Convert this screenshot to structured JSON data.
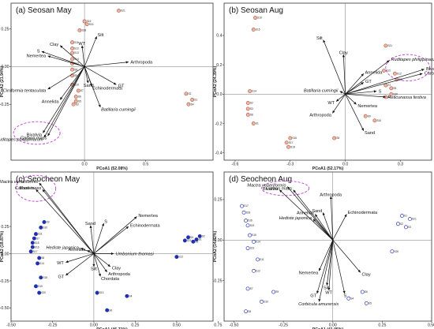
{
  "chart_data": [
    {
      "type": "scatter",
      "panel": "(a) Seosan May",
      "xlabel": "PCoA1 (52.08%)",
      "ylabel": "PCoA2 (21.94%)",
      "xlim": [
        -0.6,
        1.05
      ],
      "ylim": [
        -0.62,
        0.42
      ],
      "xticks": [
        0.0,
        0.5
      ],
      "xtick_labels": [
        "0.0",
        "0.5"
      ],
      "yticks": [
        0.25,
        0.0,
        -0.25
      ],
      "ytick_labels": [
        "0.25",
        "0.00",
        "-0.25"
      ],
      "point_color": "#b5604a",
      "points": [
        {
          "x": 0.28,
          "y": 0.37,
          "label": "S21"
        },
        {
          "x": 0.0,
          "y": 0.3,
          "label": "S16"
        },
        {
          "x": 0.02,
          "y": 0.28,
          "label": "S15"
        },
        {
          "x": -0.04,
          "y": 0.24,
          "label": "S18"
        },
        {
          "x": -0.1,
          "y": 0.16,
          "label": "S11"
        },
        {
          "x": -0.1,
          "y": 0.12,
          "label": "S12"
        },
        {
          "x": -0.1,
          "y": 0.09,
          "label": "S13"
        },
        {
          "x": -0.1,
          "y": 0.05,
          "label": "S14"
        },
        {
          "x": -0.1,
          "y": 0.02,
          "label": "S17"
        },
        {
          "x": -0.1,
          "y": -0.02,
          "label": "S8"
        },
        {
          "x": -0.1,
          "y": -0.06,
          "label": "S9"
        },
        {
          "x": -0.1,
          "y": -0.12,
          "label": "S10"
        },
        {
          "x": -0.05,
          "y": -0.16,
          "label": "S7"
        },
        {
          "x": -0.07,
          "y": -0.2,
          "label": "S6"
        },
        {
          "x": -0.07,
          "y": -0.23,
          "label": "S5"
        },
        {
          "x": -0.09,
          "y": -0.25,
          "label": "S3"
        },
        {
          "x": 0.83,
          "y": -0.18,
          "label": "S2"
        },
        {
          "x": 0.88,
          "y": -0.22,
          "label": "S1"
        },
        {
          "x": 0.85,
          "y": -0.25,
          "label": "S4"
        }
      ],
      "vectors": [
        {
          "label": "Silt",
          "x": 0.1,
          "y": 0.2,
          "italic": false
        },
        {
          "label": "WT",
          "x": -0.02,
          "y": 0.14,
          "italic": false
        },
        {
          "label": "Clay",
          "x": -0.2,
          "y": 0.14,
          "italic": false
        },
        {
          "label": "S",
          "x": -0.35,
          "y": 0.1,
          "italic": false
        },
        {
          "label": "Nemertea",
          "x": -0.3,
          "y": 0.07,
          "italic": false
        },
        {
          "label": "Arthropoda",
          "x": 0.36,
          "y": 0.03,
          "italic": false
        },
        {
          "label": "GT",
          "x": 0.26,
          "y": -0.12,
          "italic": false
        },
        {
          "label": "Sand",
          "x": 0.03,
          "y": -0.11,
          "italic": false
        },
        {
          "label": "Echinodermata",
          "x": 0.06,
          "y": -0.13,
          "italic": false
        },
        {
          "label": "Cirriformia tentaculata",
          "x": -0.3,
          "y": -0.15,
          "italic": true
        },
        {
          "label": "Annelida",
          "x": -0.2,
          "y": -0.22,
          "italic": false
        },
        {
          "label": "Batillaria cumingii",
          "x": 0.13,
          "y": -0.27,
          "italic": true
        },
        {
          "label": "Bivalvia",
          "x": -0.34,
          "y": -0.44,
          "italic": false
        },
        {
          "label": "Carbon mass",
          "x": -0.3,
          "y": -0.46,
          "italic": false
        },
        {
          "label": "Ruditapes philippinarum",
          "x": -0.33,
          "y": -0.47,
          "italic": true
        }
      ]
    },
    {
      "type": "scatter",
      "panel": "(b) Seosan Aug",
      "xlabel": "PCoA1 (52.17%)",
      "ylabel": "PCoA2 (24.39%)",
      "xlim": [
        -0.66,
        0.47
      ],
      "ylim": [
        -0.45,
        0.62
      ],
      "xticks": [
        -0.6,
        -0.3,
        0.0,
        0.3
      ],
      "xtick_labels": [
        "-0.6",
        "-0.3",
        "0.0",
        "0.3"
      ],
      "yticks": [
        0.4,
        0.2,
        0.0,
        -0.2,
        -0.4
      ],
      "ytick_labels": [
        "0.4",
        "0.2",
        "0.0",
        "-0.2",
        "-0.4"
      ],
      "point_color": "#c0664f",
      "points": [
        {
          "x": -0.49,
          "y": 0.52,
          "label": "S19"
        },
        {
          "x": -0.5,
          "y": 0.44,
          "label": "S15"
        },
        {
          "x": -0.52,
          "y": 0.02,
          "label": "S14"
        },
        {
          "x": -0.53,
          "y": -0.06,
          "label": "S2"
        },
        {
          "x": -0.53,
          "y": -0.1,
          "label": "S3"
        },
        {
          "x": -0.53,
          "y": -0.14,
          "label": "S6"
        },
        {
          "x": -0.5,
          "y": -0.2,
          "label": "S1"
        },
        {
          "x": -0.3,
          "y": -0.3,
          "label": "S16"
        },
        {
          "x": -0.32,
          "y": -0.33,
          "label": "S17"
        },
        {
          "x": -0.31,
          "y": -0.36,
          "label": "S18"
        },
        {
          "x": -0.06,
          "y": -0.3,
          "label": "S8"
        },
        {
          "x": 0.11,
          "y": -0.15,
          "label": "S9"
        },
        {
          "x": 0.16,
          "y": -0.18,
          "label": "S10"
        },
        {
          "x": 0.21,
          "y": 0.16,
          "label": "S13"
        },
        {
          "x": 0.27,
          "y": 0.14,
          "label": "S12"
        },
        {
          "x": 0.28,
          "y": 0.1,
          "label": "S11"
        },
        {
          "x": 0.22,
          "y": 0.06,
          "label": "S7"
        },
        {
          "x": 0.25,
          "y": 0.04,
          "label": "S5"
        },
        {
          "x": 0.25,
          "y": 0.0,
          "label": "S20"
        },
        {
          "x": 0.22,
          "y": -0.02,
          "label": "S4"
        },
        {
          "x": 0.22,
          "y": 0.33,
          "label": "S21"
        }
      ],
      "vectors": [
        {
          "label": "Silt",
          "x": -0.12,
          "y": 0.37,
          "italic": false
        },
        {
          "label": "Clay",
          "x": -0.01,
          "y": 0.27,
          "italic": false
        },
        {
          "label": "Ruditapes philippinarum",
          "x": 0.24,
          "y": 0.23,
          "italic": true
        },
        {
          "label": "Bivalvia",
          "x": 0.43,
          "y": 0.17,
          "italic": false
        },
        {
          "label": "Carbon mass",
          "x": 0.42,
          "y": 0.14,
          "italic": false
        },
        {
          "label": "Annelida",
          "x": 0.1,
          "y": 0.14,
          "italic": false
        },
        {
          "label": "GT",
          "x": 0.1,
          "y": 0.08,
          "italic": false
        },
        {
          "label": "S",
          "x": 0.17,
          "y": 0.02,
          "italic": false
        },
        {
          "label": "Batillaria cumingii",
          "x": -0.03,
          "y": 0.02,
          "italic": true
        },
        {
          "label": "Reticunassa festiva",
          "x": 0.22,
          "y": -0.02,
          "italic": true
        },
        {
          "label": "WT",
          "x": -0.05,
          "y": -0.05,
          "italic": false
        },
        {
          "label": "Nemertea",
          "x": 0.06,
          "y": -0.07,
          "italic": false
        },
        {
          "label": "Arthropoda",
          "x": -0.07,
          "y": -0.13,
          "italic": false
        },
        {
          "label": "Sand",
          "x": 0.1,
          "y": -0.25,
          "italic": false
        }
      ]
    },
    {
      "type": "scatter",
      "panel": "(c) Seocheon May",
      "xlabel": "PCoA1 (46.71%)",
      "ylabel": "PCoA2 (18.87%)",
      "xlim": [
        -0.5,
        0.72
      ],
      "ylim": [
        -0.62,
        0.75
      ],
      "xticks": [
        -0.5,
        -0.25,
        0.0,
        0.25,
        0.5,
        0.75
      ],
      "xtick_labels": [
        "-0.50",
        "-0.25",
        "0.00",
        "0.25",
        "0.50",
        "0.75"
      ],
      "yticks": [
        0.25,
        0.0,
        -0.25,
        -0.5
      ],
      "ytick_labels": [
        "0.25",
        "0.00",
        "-0.25",
        "-0.50"
      ],
      "point_color": "#1f2fb0",
      "points": [
        {
          "x": -0.3,
          "y": 0.29,
          "label": "S9"
        },
        {
          "x": -0.32,
          "y": 0.24,
          "label": "S10"
        },
        {
          "x": -0.35,
          "y": 0.18,
          "label": "S11"
        },
        {
          "x": -0.36,
          "y": 0.14,
          "label": "S7"
        },
        {
          "x": -0.37,
          "y": 0.1,
          "label": "S15"
        },
        {
          "x": -0.37,
          "y": 0.06,
          "label": "S16"
        },
        {
          "x": -0.38,
          "y": 0.02,
          "label": "S17"
        },
        {
          "x": -0.33,
          "y": -0.04,
          "label": "S8"
        },
        {
          "x": -0.34,
          "y": -0.09,
          "label": "S14"
        },
        {
          "x": -0.32,
          "y": -0.22,
          "label": "S18"
        },
        {
          "x": -0.35,
          "y": -0.3,
          "label": "S19"
        },
        {
          "x": -0.33,
          "y": -0.36,
          "label": "S20"
        },
        {
          "x": 0.02,
          "y": -0.36,
          "label": "S13"
        },
        {
          "x": 0.2,
          "y": -0.39,
          "label": "S4"
        },
        {
          "x": 0.08,
          "y": -0.52,
          "label": "S6"
        },
        {
          "x": 0.5,
          "y": -0.03,
          "label": "S12"
        },
        {
          "x": 0.64,
          "y": 0.16,
          "label": "S2"
        },
        {
          "x": 0.62,
          "y": 0.13,
          "label": "S1"
        },
        {
          "x": 0.6,
          "y": 0.11,
          "label": "S3"
        },
        {
          "x": 0.57,
          "y": 0.15,
          "label": "S5"
        },
        {
          "x": 0.55,
          "y": 0.12,
          "label": "S21"
        }
      ],
      "vectors": [
        {
          "label": "Mactra veneriformis",
          "x": -0.33,
          "y": 0.65,
          "italic": true
        },
        {
          "label": "Bivalvia",
          "x": -0.35,
          "y": 0.59,
          "italic": false
        },
        {
          "label": "Carbon mass",
          "x": -0.31,
          "y": 0.59,
          "italic": false
        },
        {
          "label": "Nemertea",
          "x": 0.26,
          "y": 0.34,
          "italic": false
        },
        {
          "label": "Echinodermata",
          "x": 0.21,
          "y": 0.25,
          "italic": false
        },
        {
          "label": "S",
          "x": 0.06,
          "y": 0.28,
          "italic": false
        },
        {
          "label": "Sand",
          "x": -0.02,
          "y": 0.26,
          "italic": false
        },
        {
          "label": "Hediste japonica",
          "x": -0.08,
          "y": 0.05,
          "italic": true
        },
        {
          "label": "Annelida",
          "x": -0.04,
          "y": 0.03,
          "italic": false
        },
        {
          "label": "Umbonium thomasi",
          "x": 0.12,
          "y": 0.0,
          "italic": true
        },
        {
          "label": "WT",
          "x": -0.17,
          "y": -0.08,
          "italic": false
        },
        {
          "label": "Silt",
          "x": 0.0,
          "y": -0.12,
          "italic": false
        },
        {
          "label": "Clay",
          "x": 0.1,
          "y": -0.12,
          "italic": false
        },
        {
          "label": "Arthropoda",
          "x": 0.08,
          "y": -0.17,
          "italic": false
        },
        {
          "label": "GT",
          "x": -0.17,
          "y": -0.2,
          "italic": false
        },
        {
          "label": "Chordata",
          "x": 0.04,
          "y": -0.21,
          "italic": false
        }
      ]
    },
    {
      "type": "scatter",
      "panel": "(d) Seocheon Aug",
      "xlabel": "PCoA1 (41.05%)",
      "ylabel": "PCoA2 (14.82%)",
      "xlim": [
        -0.55,
        0.5
      ],
      "ylim": [
        -0.5,
        0.42
      ],
      "xticks": [
        -0.5,
        -0.25,
        0.0,
        0.25,
        0.5
      ],
      "xtick_labels": [
        "-0.50",
        "-0.25",
        "0.00",
        "0.25",
        "0.50"
      ],
      "yticks": [
        0.25,
        0.0,
        -0.25
      ],
      "ytick_labels": [
        "0.25",
        "0.00",
        "-0.25"
      ],
      "point_color": "#2a3ab5",
      "points": [
        {
          "x": -0.46,
          "y": 0.21,
          "label": "S17"
        },
        {
          "x": -0.45,
          "y": 0.17,
          "label": "S18"
        },
        {
          "x": -0.44,
          "y": 0.12,
          "label": "S16"
        },
        {
          "x": -0.43,
          "y": 0.09,
          "label": "S19"
        },
        {
          "x": -0.42,
          "y": 0.03,
          "label": "S15"
        },
        {
          "x": -0.4,
          "y": -0.01,
          "label": "S14"
        },
        {
          "x": -0.43,
          "y": -0.05,
          "label": "S13"
        },
        {
          "x": -0.38,
          "y": -0.12,
          "label": "S11"
        },
        {
          "x": -0.4,
          "y": -0.19,
          "label": "S12"
        },
        {
          "x": -0.43,
          "y": -0.3,
          "label": "S7"
        },
        {
          "x": -0.3,
          "y": -0.32,
          "label": "S9"
        },
        {
          "x": -0.36,
          "y": -0.38,
          "label": "S10"
        },
        {
          "x": -0.44,
          "y": -0.44,
          "label": "S8"
        },
        {
          "x": 0.15,
          "y": -0.32,
          "label": "S6"
        },
        {
          "x": 0.08,
          "y": -0.36,
          "label": "S4"
        },
        {
          "x": 0.17,
          "y": -0.39,
          "label": "S5"
        },
        {
          "x": 0.3,
          "y": -0.07,
          "label": "S20"
        },
        {
          "x": 0.35,
          "y": 0.15,
          "label": "S1"
        },
        {
          "x": 0.39,
          "y": 0.13,
          "label": "S21"
        },
        {
          "x": 0.33,
          "y": 0.1,
          "label": "S2"
        },
        {
          "x": 0.37,
          "y": 0.08,
          "label": "S3"
        }
      ],
      "vectors": [
        {
          "label": "Mactra veneriformis",
          "x": -0.23,
          "y": 0.33,
          "italic": true
        },
        {
          "label": "Bivalvia",
          "x": -0.27,
          "y": 0.31,
          "italic": false
        },
        {
          "label": "Carbon mass",
          "x": -0.2,
          "y": 0.31,
          "italic": false
        },
        {
          "label": "Arthropoda",
          "x": -0.01,
          "y": 0.27,
          "italic": false
        },
        {
          "label": "Echinodermata",
          "x": 0.07,
          "y": 0.16,
          "italic": false
        },
        {
          "label": "Sand",
          "x": -0.05,
          "y": 0.17,
          "italic": false
        },
        {
          "label": "Annelida",
          "x": -0.09,
          "y": 0.16,
          "italic": false
        },
        {
          "label": "Hediste japonica",
          "x": -0.1,
          "y": 0.13,
          "italic": true
        },
        {
          "label": "Nemertea",
          "x": -0.07,
          "y": -0.19,
          "italic": false
        },
        {
          "label": "Clay",
          "x": 0.14,
          "y": -0.2,
          "italic": false
        },
        {
          "label": "Silt",
          "x": -0.03,
          "y": -0.28,
          "italic": false
        },
        {
          "label": "GT",
          "x": -0.08,
          "y": -0.33,
          "italic": false
        },
        {
          "label": "WT",
          "x": -0.02,
          "y": -0.31,
          "italic": false
        },
        {
          "label": "S",
          "x": 0.06,
          "y": -0.33,
          "italic": false
        },
        {
          "label": "Corbicula amurensis",
          "x": -0.07,
          "y": -0.38,
          "italic": true
        }
      ]
    }
  ]
}
